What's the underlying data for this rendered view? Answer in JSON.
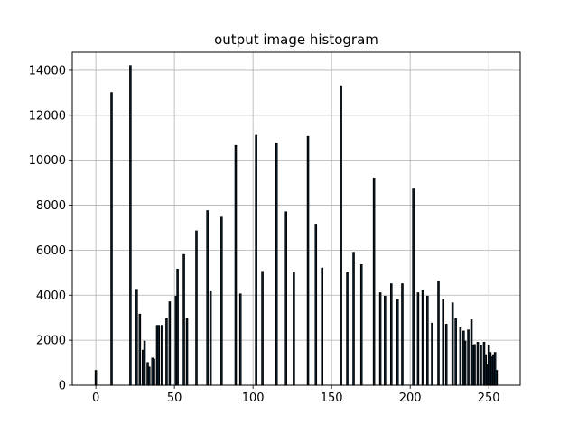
{
  "chart_data": {
    "type": "bar",
    "title": "output image histogram",
    "xlabel": "",
    "ylabel": "",
    "xlim": [
      -15,
      270
    ],
    "ylim": [
      0,
      14800
    ],
    "x_ticks": [
      0,
      50,
      100,
      150,
      200,
      250
    ],
    "y_ticks": [
      0,
      2000,
      4000,
      6000,
      8000,
      10000,
      12000,
      14000
    ],
    "grid": true,
    "bar_color": "#1f77b4",
    "edge_color": "#000000",
    "x": [
      0,
      10,
      22,
      26,
      28,
      30,
      31,
      33,
      34,
      36,
      37,
      39,
      40,
      42,
      45,
      47,
      51,
      52,
      56,
      58,
      64,
      71,
      73,
      80,
      89,
      92,
      102,
      106,
      115,
      121,
      126,
      135,
      140,
      144,
      156,
      160,
      164,
      169,
      177,
      181,
      184,
      188,
      192,
      195,
      202,
      205,
      208,
      211,
      214,
      218,
      221,
      223,
      227,
      229,
      232,
      234,
      235,
      237,
      239,
      240,
      241,
      243,
      245,
      247,
      248,
      249,
      250,
      251,
      252,
      253,
      254,
      255
    ],
    "values": [
      650,
      13000,
      14200,
      4250,
      3150,
      1550,
      1950,
      1000,
      800,
      1200,
      1150,
      2650,
      2650,
      2650,
      2950,
      3700,
      3950,
      5150,
      5800,
      2950,
      6850,
      7750,
      4150,
      7500,
      10650,
      4050,
      11100,
      5050,
      10750,
      7700,
      5000,
      11050,
      7150,
      5200,
      13300,
      5000,
      5900,
      5350,
      9200,
      4100,
      3950,
      4500,
      3800,
      4500,
      8750,
      4100,
      4200,
      3950,
      2750,
      4600,
      3800,
      2700,
      3650,
      2950,
      2550,
      2400,
      1950,
      2450,
      2900,
      1750,
      1800,
      1900,
      1750,
      1900,
      1350,
      900,
      1750,
      1450,
      1250,
      1350,
      1450,
      650
    ]
  }
}
